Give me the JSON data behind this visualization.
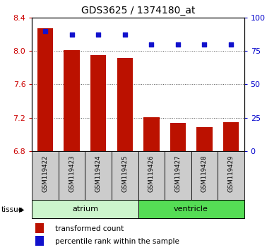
{
  "title": "GDS3625 / 1374180_at",
  "samples": [
    "GSM119422",
    "GSM119423",
    "GSM119424",
    "GSM119425",
    "GSM119426",
    "GSM119427",
    "GSM119428",
    "GSM119429"
  ],
  "transformed_counts": [
    8.27,
    8.01,
    7.95,
    7.92,
    7.21,
    7.14,
    7.09,
    7.15
  ],
  "percentile_ranks": [
    90,
    87,
    87,
    87,
    80,
    80,
    80,
    80
  ],
  "ylim_left": [
    6.8,
    8.4
  ],
  "ylim_right": [
    0,
    100
  ],
  "yticks_left": [
    6.8,
    7.2,
    7.6,
    8.0,
    8.4
  ],
  "yticks_right": [
    0,
    25,
    50,
    75,
    100
  ],
  "groups": [
    {
      "label": "atrium",
      "start": 0,
      "end": 4,
      "color": "#ccf5cc"
    },
    {
      "label": "ventricle",
      "start": 4,
      "end": 8,
      "color": "#55dd55"
    }
  ],
  "bar_color": "#bb1100",
  "dot_color": "#1111cc",
  "bar_bottom": 6.8,
  "tick_label_color_left": "#cc0000",
  "tick_label_color_right": "#0000cc",
  "grid_color": "#555555",
  "background_color": "#ffffff",
  "sample_box_color": "#cccccc",
  "tissue_label": "tissue",
  "legend_items": [
    "transformed count",
    "percentile rank within the sample"
  ]
}
